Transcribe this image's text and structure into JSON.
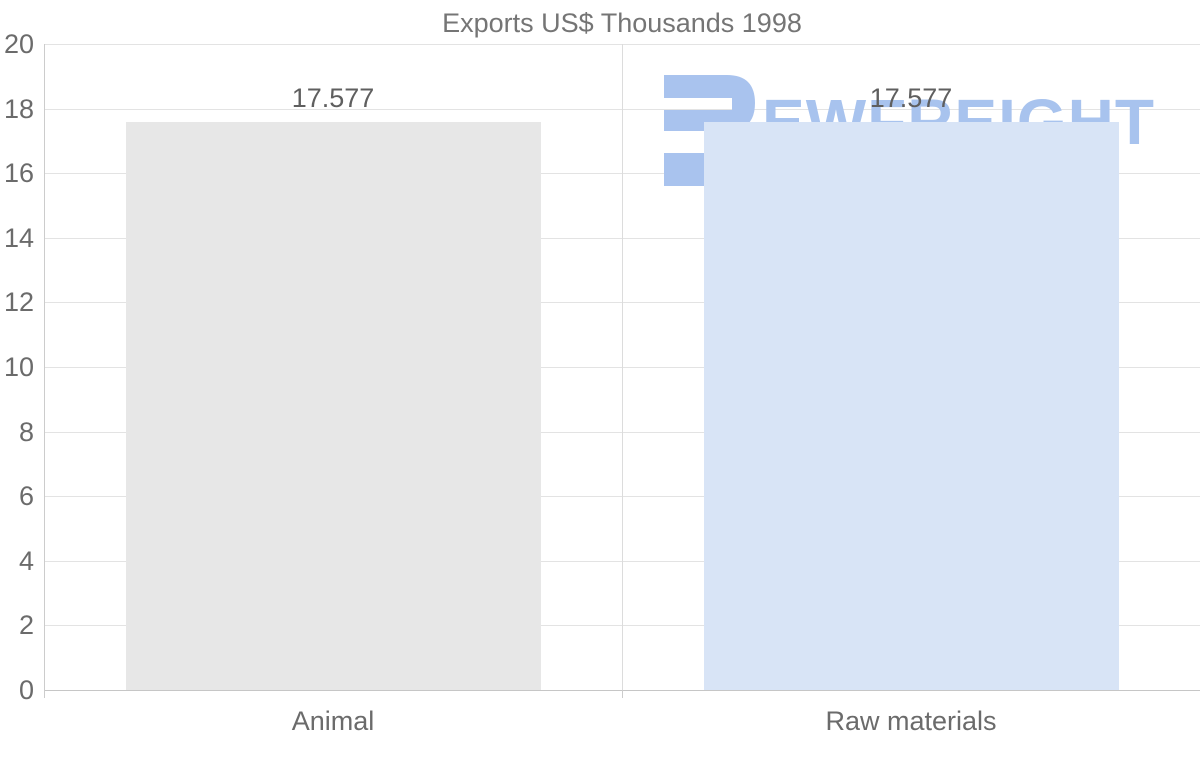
{
  "title": "Exports US$ Thousands 1998",
  "watermark": {
    "text": "EWFREIGHT",
    "icon": "ewfreight-logo-icon",
    "color": "#a8c3ee"
  },
  "chart_data": {
    "type": "bar",
    "title": "Exports US$ Thousands 1998",
    "categories": [
      "Animal",
      "Raw materials"
    ],
    "values": [
      17.577,
      17.577
    ],
    "value_labels": [
      "17.577",
      "17.577"
    ],
    "bar_colors": [
      "#e7e7e7",
      "#d8e4f6"
    ],
    "xlabel": "",
    "ylabel": "",
    "ylim": [
      0,
      20
    ],
    "yticks": [
      0,
      2,
      4,
      6,
      8,
      10,
      12,
      14,
      16,
      18,
      20
    ],
    "grid": "horizontal",
    "legend": "none",
    "text_color": "#6b6b6b",
    "gridline_color": "#e3e3e3"
  }
}
